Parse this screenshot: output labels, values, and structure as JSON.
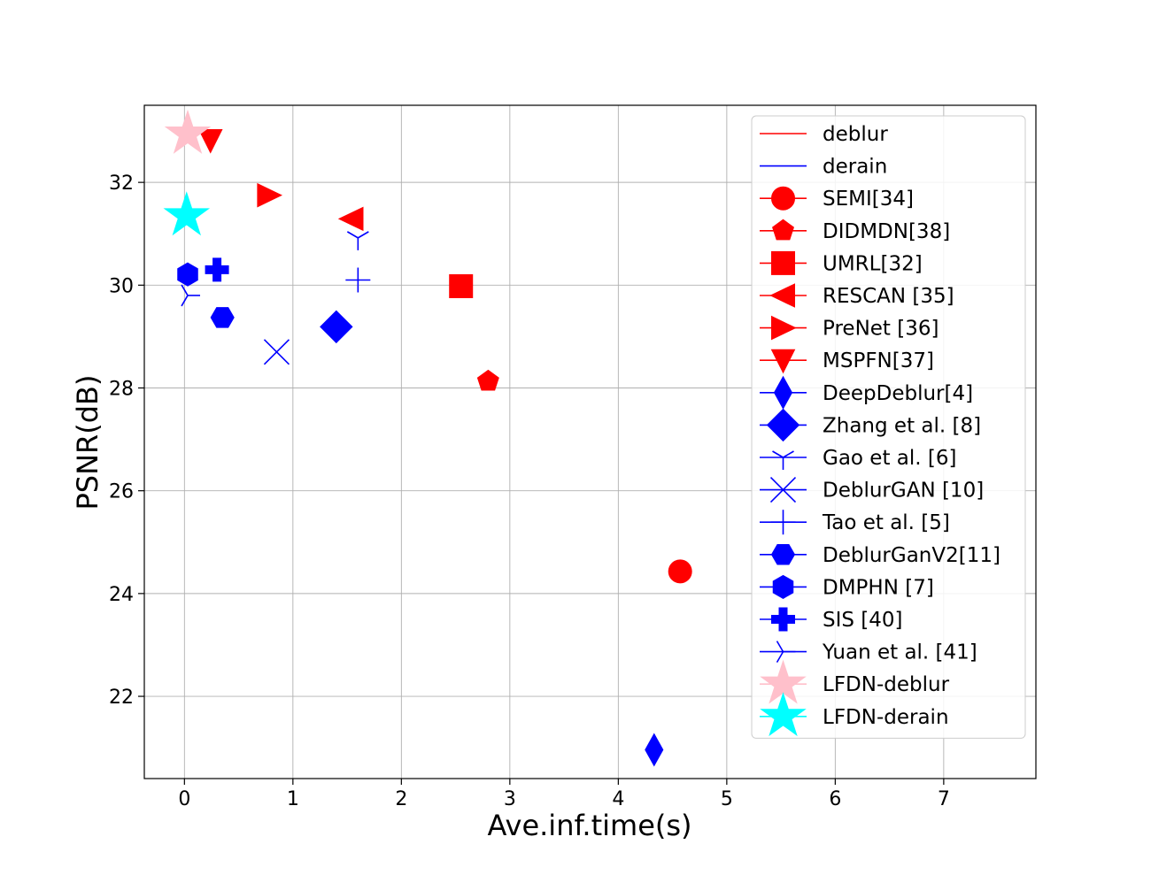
{
  "chart_data": {
    "type": "scatter",
    "title": "",
    "xlabel": "Ave.inf.time(s)",
    "ylabel": "PSNR(dB)",
    "xlim": [
      -0.37,
      7.85
    ],
    "ylim": [
      20.4,
      33.5
    ],
    "xticks": [
      0,
      1,
      2,
      3,
      4,
      5,
      6,
      7
    ],
    "yticks": [
      22,
      24,
      26,
      28,
      30,
      32
    ],
    "grid": true,
    "legend_position": "upper-right",
    "legend_lines": [
      {
        "name": "deblur",
        "color": "#ff0000"
      },
      {
        "name": "derain",
        "color": "#0000ff"
      }
    ],
    "series": [
      {
        "name": "SEMI[34]",
        "color": "#ff0000",
        "marker": "circle",
        "x": 4.57,
        "y": 24.43
      },
      {
        "name": "DIDMDN[38]",
        "color": "#ff0000",
        "marker": "pentagon",
        "x": 2.8,
        "y": 28.13
      },
      {
        "name": "UMRL[32]",
        "color": "#ff0000",
        "marker": "square",
        "x": 2.55,
        "y": 29.98
      },
      {
        "name": "RESCAN [35]",
        "color": "#ff0000",
        "marker": "triangle-left",
        "x": 1.54,
        "y": 31.29
      },
      {
        "name": "PreNet [36]",
        "color": "#ff0000",
        "marker": "triangle-right",
        "x": 0.78,
        "y": 31.75
      },
      {
        "name": "MSPFN[37]",
        "color": "#ff0000",
        "marker": "triangle-down",
        "x": 0.24,
        "y": 32.82
      },
      {
        "name": "DeepDeblur[4]",
        "color": "#0000ff",
        "marker": "thin-diamond",
        "x": 4.33,
        "y": 20.96
      },
      {
        "name": "Zhang et al. [8]",
        "color": "#0000ff",
        "marker": "diamond",
        "x": 1.4,
        "y": 29.19
      },
      {
        "name": "Gao et al. [6]",
        "color": "#0000ff",
        "marker": "tri-down",
        "x": 1.6,
        "y": 30.92
      },
      {
        "name": "DeblurGAN [10]",
        "color": "#0000ff",
        "marker": "x",
        "x": 0.85,
        "y": 28.7
      },
      {
        "name": "Tao et al. [5]",
        "color": "#0000ff",
        "marker": "plus",
        "x": 1.6,
        "y": 30.1
      },
      {
        "name": "DeblurGanV2[11]",
        "color": "#0000ff",
        "marker": "hexagon-flat",
        "x": 0.35,
        "y": 29.37
      },
      {
        "name": "DMPHN [7]",
        "color": "#0000ff",
        "marker": "hexagon",
        "x": 0.03,
        "y": 30.21
      },
      {
        "name": "SIS [40]",
        "color": "#0000ff",
        "marker": "plus-filled",
        "x": 0.3,
        "y": 30.3
      },
      {
        "name": "Yuan et al. [41]",
        "color": "#0000ff",
        "marker": "tri-right",
        "x": 0.03,
        "y": 29.8
      },
      {
        "name": "LFDN-deblur",
        "color": "#ffc0cb",
        "marker": "star",
        "x": 0.03,
        "y": 32.94
      },
      {
        "name": "LFDN-derain",
        "color": "#00ffff",
        "marker": "star",
        "x": 0.02,
        "y": 31.35
      }
    ]
  }
}
